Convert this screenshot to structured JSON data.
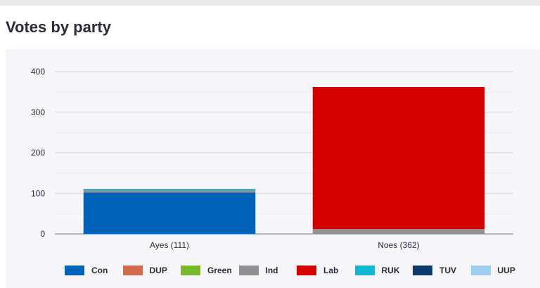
{
  "page": {
    "title": "Votes by party"
  },
  "chart_data": {
    "type": "bar",
    "stacked": true,
    "categories": [
      "Ayes (111)",
      "Noes (362)"
    ],
    "series": [
      {
        "name": "Con",
        "color": "#0063ba",
        "values": [
          102,
          0
        ]
      },
      {
        "name": "DUP",
        "color": "#d46a4c",
        "values": [
          0,
          0
        ]
      },
      {
        "name": "Green",
        "color": "#78b82a",
        "values": [
          0,
          0
        ]
      },
      {
        "name": "Ind",
        "color": "#909090",
        "values": [
          6,
          12
        ]
      },
      {
        "name": "Lab",
        "color": "#d50000",
        "values": [
          0,
          350
        ]
      },
      {
        "name": "RUK",
        "color": "#12b6cf",
        "values": [
          3,
          0
        ]
      },
      {
        "name": "TUV",
        "color": "#0c3a6a",
        "values": [
          0,
          0
        ]
      },
      {
        "name": "UUP",
        "color": "#a1cdf0",
        "values": [
          0,
          0
        ]
      }
    ],
    "ylim": [
      0,
      400
    ],
    "yticks": [
      0,
      100,
      200,
      300,
      400
    ],
    "grid": true,
    "legend_position": "bottom"
  }
}
